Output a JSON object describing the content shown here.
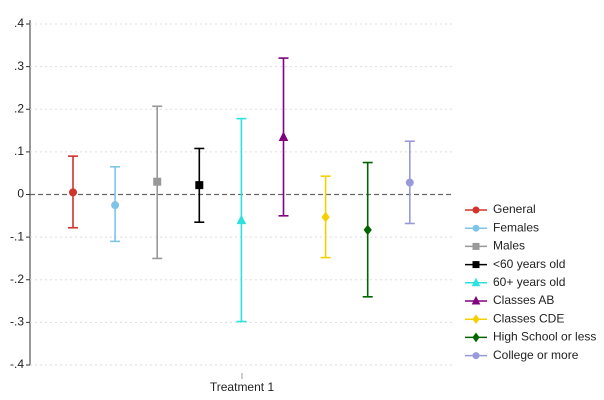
{
  "chart_data": {
    "type": "errorbar",
    "categories": [
      "Treatment 1"
    ],
    "ylim": [
      -0.4,
      0.4
    ],
    "yticks": [
      {
        "value": 0.4,
        "label": ".4"
      },
      {
        "value": 0.3,
        "label": ".3"
      },
      {
        "value": 0.2,
        "label": ".2"
      },
      {
        "value": 0.1,
        "label": ".1"
      },
      0,
      {
        "value": -0.1,
        "label": "-.1"
      },
      {
        "value": -0.2,
        "label": "-.2"
      },
      {
        "value": -0.3,
        "label": "-.3"
      },
      {
        "value": -0.4,
        "label": "-.4"
      }
    ],
    "grid": true,
    "legend": "right",
    "series": [
      {
        "name": "General",
        "color": "#d0342c",
        "marker": "circle",
        "values": [
          0.005
        ],
        "lower": [
          -0.078
        ],
        "upper": [
          0.09
        ]
      },
      {
        "name": "Females",
        "color": "#7fc4e6",
        "marker": "circle",
        "values": [
          -0.025
        ],
        "lower": [
          -0.11
        ],
        "upper": [
          0.065
        ]
      },
      {
        "name": "Males",
        "color": "#999999",
        "marker": "square",
        "values": [
          0.03
        ],
        "lower": [
          -0.15
        ],
        "upper": [
          0.207
        ]
      },
      {
        "name": "<60 years old",
        "color": "#000000",
        "marker": "square",
        "values": [
          0.022
        ],
        "lower": [
          -0.065
        ],
        "upper": [
          0.108
        ]
      },
      {
        "name": "60+ years old",
        "color": "#2fe0e0",
        "marker": "triangle",
        "values": [
          -0.06
        ],
        "lower": [
          -0.298
        ],
        "upper": [
          0.178
        ]
      },
      {
        "name": "Classes AB",
        "color": "#800080",
        "marker": "triangle",
        "values": [
          0.135
        ],
        "lower": [
          -0.05
        ],
        "upper": [
          0.32
        ]
      },
      {
        "name": "Classes CDE",
        "color": "#f5d000",
        "marker": "diamond",
        "values": [
          -0.053
        ],
        "lower": [
          -0.148
        ],
        "upper": [
          0.043
        ]
      },
      {
        "name": "High School or less",
        "color": "#006400",
        "marker": "diamond",
        "values": [
          -0.083
        ],
        "lower": [
          -0.24
        ],
        "upper": [
          0.075
        ]
      },
      {
        "name": "College or more",
        "color": "#9999dd",
        "marker": "circle",
        "values": [
          0.028
        ],
        "lower": [
          -0.068
        ],
        "upper": [
          0.125
        ]
      }
    ]
  }
}
